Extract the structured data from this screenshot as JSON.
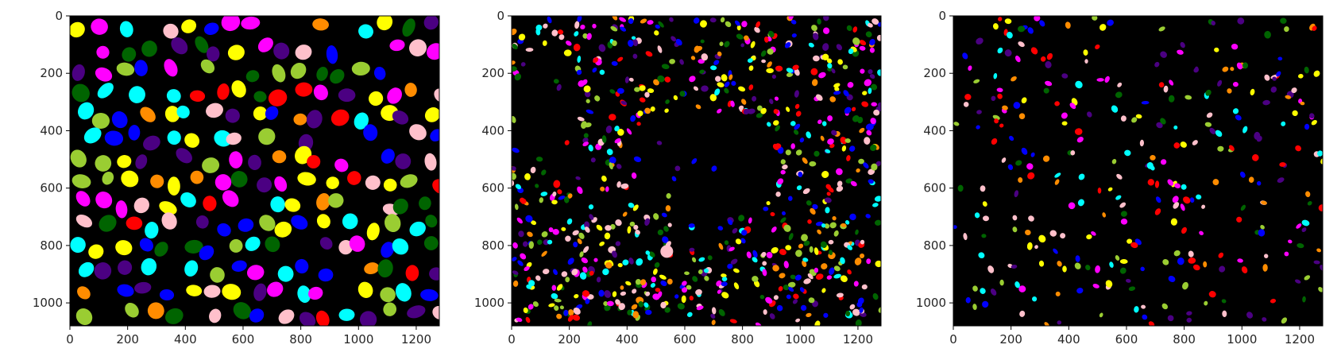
{
  "figure": {
    "panels": [
      {
        "name": "panel-1",
        "description": "dense large nuclei segmentation mask",
        "x_ticks": [
          "0",
          "200",
          "400",
          "600",
          "800",
          "1000",
          "1200"
        ],
        "y_ticks": [
          "0",
          "200",
          "400",
          "600",
          "800",
          "1000"
        ],
        "density": "dense-large"
      },
      {
        "name": "panel-2",
        "description": "many small cells with empty center region",
        "x_ticks": [
          "0",
          "200",
          "400",
          "600",
          "800",
          "1000",
          "1200"
        ],
        "y_ticks": [
          "0",
          "200",
          "400",
          "600",
          "800",
          "1000"
        ],
        "density": "ring-small"
      },
      {
        "name": "panel-3",
        "description": "sparse small cells",
        "x_ticks": [
          "0",
          "200",
          "400",
          "600",
          "800",
          "1000",
          "1200"
        ],
        "y_ticks": [
          "0",
          "200",
          "400",
          "600",
          "800",
          "1000"
        ],
        "density": "sparse-small"
      }
    ],
    "x_range": [
      0,
      1280
    ],
    "y_range": [
      0,
      1080
    ],
    "palette": [
      "#ff0000",
      "#0000ff",
      "#ffff00",
      "#00ffff",
      "#ff00ff",
      "#ff8c00",
      "#006400",
      "#4b0082",
      "#ffc0cb",
      "#9acd32"
    ],
    "background": "#000000"
  }
}
